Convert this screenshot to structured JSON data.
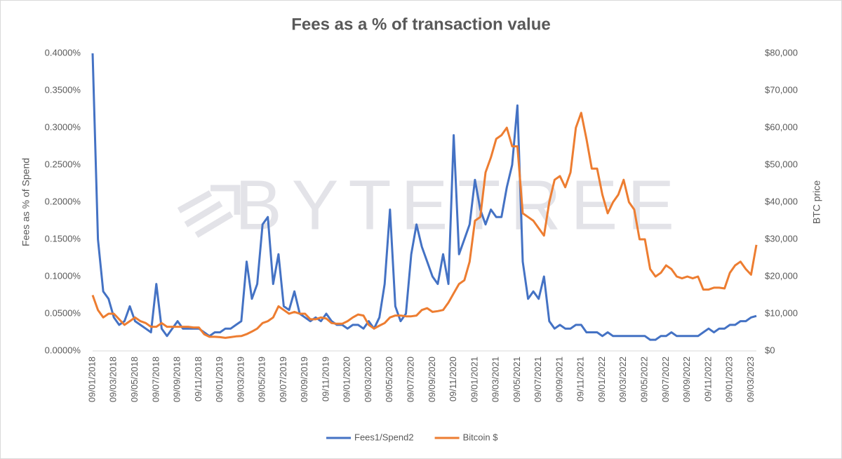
{
  "chart_data": {
    "type": "line",
    "title": "Fees as a % of transaction value",
    "watermark": "BYTETREE",
    "y_label": "Fees as % of Spend",
    "y2_label": "BTC price",
    "categories": [
      "09/01/2018",
      null,
      null,
      null,
      "09/03/2018",
      null,
      null,
      null,
      "09/05/2018",
      null,
      null,
      null,
      "09/07/2018",
      null,
      null,
      null,
      "09/09/2018",
      null,
      null,
      null,
      "09/11/2018",
      null,
      null,
      null,
      "09/01/2019",
      null,
      null,
      null,
      "09/03/2019",
      null,
      null,
      null,
      "09/05/2019",
      null,
      null,
      null,
      "09/07/2019",
      null,
      null,
      null,
      "09/09/2019",
      null,
      null,
      null,
      "09/11/2019",
      null,
      null,
      null,
      "09/01/2020",
      null,
      null,
      null,
      "09/03/2020",
      null,
      null,
      null,
      "09/05/2020",
      null,
      null,
      null,
      "09/07/2020",
      null,
      null,
      null,
      "09/09/2020",
      null,
      null,
      null,
      "09/11/2020",
      null,
      null,
      null,
      "09/01/2021",
      null,
      null,
      null,
      "09/03/2021",
      null,
      null,
      null,
      "09/05/2021",
      null,
      null,
      null,
      "09/07/2021",
      null,
      null,
      null,
      "09/09/2021",
      null,
      null,
      null,
      "09/11/2021",
      null,
      null,
      null,
      "09/01/2022",
      null,
      null,
      null,
      "09/03/2022",
      null,
      null,
      null,
      "09/05/2022",
      null,
      null,
      null,
      "09/07/2022",
      null,
      null,
      null,
      "09/09/2022",
      null,
      null,
      null,
      "09/11/2022",
      null,
      null,
      null,
      "09/01/2023",
      null,
      null,
      null,
      "09/03/2023",
      null
    ],
    "series": [
      {
        "name": "Fees1/Spend2",
        "color": "#4472c4",
        "axis": "y",
        "values": [
          0.4,
          0.15,
          0.08,
          0.07,
          0.045,
          0.035,
          0.04,
          0.06,
          0.04,
          0.035,
          0.03,
          0.025,
          0.09,
          0.03,
          0.02,
          0.03,
          0.04,
          0.03,
          0.03,
          0.03,
          0.03,
          0.025,
          0.02,
          0.025,
          0.025,
          0.03,
          0.03,
          0.035,
          0.04,
          0.12,
          0.07,
          0.09,
          0.17,
          0.18,
          0.09,
          0.13,
          0.06,
          0.055,
          0.08,
          0.05,
          0.045,
          0.04,
          0.045,
          0.04,
          0.05,
          0.04,
          0.035,
          0.035,
          0.03,
          0.035,
          0.035,
          0.03,
          0.04,
          0.03,
          0.045,
          0.09,
          0.19,
          0.06,
          0.04,
          0.05,
          0.13,
          0.17,
          0.14,
          0.12,
          0.1,
          0.09,
          0.13,
          0.09,
          0.29,
          0.13,
          0.15,
          0.17,
          0.23,
          0.19,
          0.17,
          0.19,
          0.18,
          0.18,
          0.22,
          0.25,
          0.33,
          0.12,
          0.07,
          0.08,
          0.07,
          0.1,
          0.04,
          0.03,
          0.035,
          0.03,
          0.03,
          0.035,
          0.035,
          0.025,
          0.025,
          0.025,
          0.02,
          0.025,
          0.02,
          0.02,
          0.02,
          0.02,
          0.02,
          0.02,
          0.02,
          0.015,
          0.015,
          0.02,
          0.02,
          0.025,
          0.02,
          0.02,
          0.02,
          0.02,
          0.02,
          0.025,
          0.03,
          0.025,
          0.03,
          0.03,
          0.035,
          0.035,
          0.04,
          0.04,
          0.045,
          0.047
        ]
      },
      {
        "name": "Bitcoin $",
        "color": "#ed7d31",
        "axis": "y2",
        "values": [
          15000,
          11000,
          9000,
          10000,
          10000,
          8500,
          7000,
          8000,
          9000,
          8000,
          7500,
          6500,
          6500,
          7500,
          6500,
          6500,
          6500,
          6500,
          6500,
          6300,
          6300,
          4500,
          3800,
          3800,
          3700,
          3500,
          3700,
          3900,
          4000,
          4500,
          5200,
          6000,
          7500,
          8000,
          9000,
          12000,
          11000,
          10000,
          10500,
          10000,
          10000,
          8500,
          8500,
          9000,
          8700,
          7500,
          7300,
          7300,
          8000,
          9000,
          9800,
          9500,
          7000,
          6000,
          6800,
          7500,
          9000,
          9500,
          9500,
          9300,
          9300,
          9500,
          11000,
          11500,
          10500,
          10700,
          11000,
          13000,
          15500,
          18000,
          19000,
          24000,
          35000,
          36000,
          48000,
          52000,
          57000,
          58000,
          60000,
          55000,
          55000,
          37000,
          36000,
          35000,
          33000,
          31000,
          40000,
          46000,
          47000,
          44000,
          48000,
          60000,
          64000,
          57000,
          49000,
          49000,
          42000,
          37000,
          40000,
          42000,
          46000,
          40000,
          38000,
          30000,
          30000,
          22000,
          20000,
          21000,
          23000,
          22000,
          20000,
          19500,
          20000,
          19500,
          20000,
          16500,
          16500,
          17000,
          17000,
          16800,
          21000,
          23000,
          24000,
          22000,
          20500,
          28500
        ]
      }
    ],
    "ylim": [
      0,
      0.4
    ],
    "yticks": [
      {
        "value": 0,
        "label": "0.0000%"
      },
      {
        "value": 0.05,
        "label": "0.0500%"
      },
      {
        "value": 0.1,
        "label": "0.1000%"
      },
      {
        "value": 0.15,
        "label": "0.1500%"
      },
      {
        "value": 0.2,
        "label": "0.2000%"
      },
      {
        "value": 0.25,
        "label": "0.2500%"
      },
      {
        "value": 0.3,
        "label": "0.3000%"
      },
      {
        "value": 0.35,
        "label": "0.3500%"
      },
      {
        "value": 0.4,
        "label": "0.4000%"
      }
    ],
    "y2lim": [
      0,
      80000
    ],
    "y2ticks": [
      {
        "value": 0,
        "label": "$0"
      },
      {
        "value": 10000,
        "label": "$10,000"
      },
      {
        "value": 20000,
        "label": "$20,000"
      },
      {
        "value": 30000,
        "label": "$30,000"
      },
      {
        "value": 40000,
        "label": "$40,000"
      },
      {
        "value": 50000,
        "label": "$50,000"
      },
      {
        "value": 60000,
        "label": "$60,000"
      },
      {
        "value": 70000,
        "label": "$70,000"
      },
      {
        "value": 80000,
        "label": "$80,000"
      }
    ],
    "grid": false,
    "legend": "bottom"
  }
}
